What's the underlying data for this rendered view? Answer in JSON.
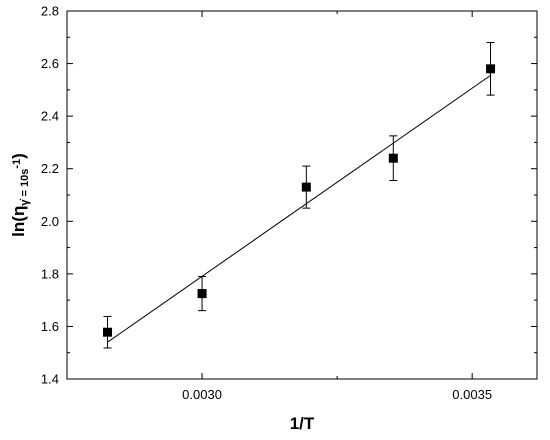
{
  "chart_data": {
    "type": "scatter",
    "title": "",
    "xlabel": "1/T",
    "ylabel": {
      "main": "ln(η",
      "sub": "γ̇ = 10s",
      "sup": "-1",
      "close": ")"
    },
    "xlim": [
      0.00275,
      0.00362
    ],
    "ylim": [
      1.4,
      2.8
    ],
    "x_ticks": [
      0.003,
      0.0035
    ],
    "x_tick_labels": [
      "0.0030",
      "0.0035"
    ],
    "y_ticks": [
      1.4,
      1.6,
      1.8,
      2.0,
      2.2,
      2.4,
      2.6,
      2.8
    ],
    "y_tick_labels": [
      "1.4",
      "1.6",
      "1.8",
      "2.0",
      "2.2",
      "2.4",
      "2.6",
      "2.8"
    ],
    "grid": false,
    "series": [
      {
        "marker": "square",
        "color": "#000000",
        "points": [
          {
            "x": 0.002825,
            "y": 1.578,
            "err": 0.06
          },
          {
            "x": 0.003,
            "y": 1.725,
            "err": 0.065
          },
          {
            "x": 0.003193,
            "y": 2.13,
            "err": 0.08
          },
          {
            "x": 0.003354,
            "y": 2.24,
            "err": 0.085
          },
          {
            "x": 0.003534,
            "y": 2.58,
            "err": 0.1
          }
        ]
      }
    ],
    "fit_line": {
      "x": [
        0.002825,
        0.003534
      ],
      "y": [
        1.54,
        2.555
      ]
    }
  }
}
